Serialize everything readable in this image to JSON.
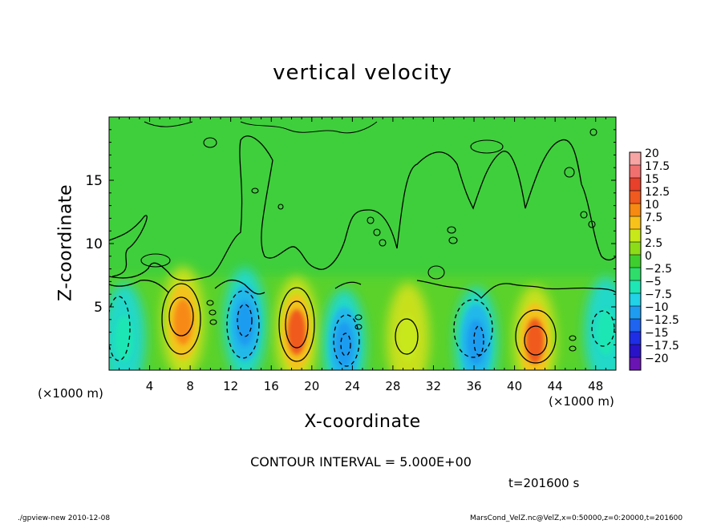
{
  "chart_data": {
    "type": "heatmap",
    "title": "vertical velocity",
    "xlabel": "X-coordinate",
    "ylabel": "Z-coordinate",
    "x_unit_left": "(×1000 m)",
    "x_unit_right": "(×1000 m)",
    "xlim": [
      0,
      50
    ],
    "ylim": [
      0,
      20
    ],
    "x_ticks": [
      4,
      8,
      12,
      16,
      20,
      24,
      28,
      32,
      36,
      40,
      44,
      48
    ],
    "y_ticks": [
      5,
      10,
      15
    ],
    "colorbar": {
      "levels": [
        "20",
        "17.5",
        "15",
        "12.5",
        "10",
        "7.5",
        "5",
        "2.5",
        "0",
        "−2.5",
        "−5",
        "−7.5",
        "−10",
        "−12.5",
        "−15",
        "−17.5",
        "−20"
      ],
      "colors": [
        "#f7a4a4",
        "#f07070",
        "#e8402a",
        "#f05a1e",
        "#f78a12",
        "#f7c21a",
        "#c8e81a",
        "#8cdc18",
        "#3ecf2e",
        "#2edd6a",
        "#1ee6b4",
        "#22d2e6",
        "#1e9cf0",
        "#1e64f0",
        "#1e2ee6",
        "#2a12c8",
        "#6a14b4"
      ]
    },
    "features": [
      {
        "x": 7.3,
        "z": 3.8,
        "value": 10
      },
      {
        "x": 13.4,
        "z": 3.7,
        "value": -10
      },
      {
        "x": 18.5,
        "z": 3.0,
        "value": 12.5
      },
      {
        "x": 23.2,
        "z": 2.0,
        "value": -10
      },
      {
        "x": 29.5,
        "z": 2.5,
        "value": 5
      },
      {
        "x": 36.2,
        "z": 2.2,
        "value": -10
      },
      {
        "x": 42.0,
        "z": 2.3,
        "value": 12.5
      },
      {
        "x": 49.0,
        "z": 3.0,
        "value": -5
      },
      {
        "x": 1.5,
        "z": 2.5,
        "value": -5
      }
    ]
  },
  "contour_interval": "CONTOUR INTERVAL = 5.000E+00",
  "time_label": "t=201600 s",
  "footer_left": "./gpview-new  2010-12-08",
  "footer_right": "MarsCond_VelZ.nc@VelZ,x=0:50000,z=0:20000,t=201600"
}
